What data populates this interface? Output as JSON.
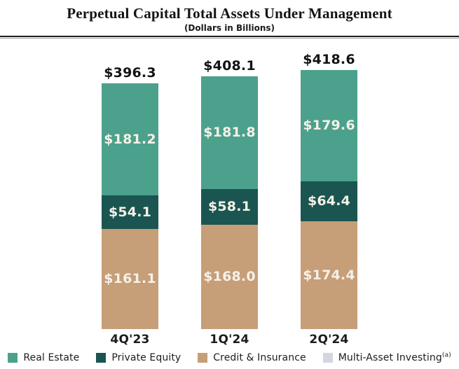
{
  "chart_data": {
    "type": "bar",
    "stacked": true,
    "title": "Perpetual Capital Total Assets Under Management",
    "subtitle": "(Dollars in Billions)",
    "unit": "USD billions",
    "grid": false,
    "legend_position": "bottom",
    "categories": [
      "4Q'23",
      "1Q'24",
      "2Q'24"
    ],
    "stack_order_top_to_bottom": [
      "Real Estate",
      "Private Equity",
      "Credit & Insurance"
    ],
    "series": [
      {
        "name": "Real Estate",
        "color": "#4CA18C",
        "values": [
          181.2,
          181.8,
          179.6
        ],
        "labels": [
          "$181.2",
          "$181.8",
          "$179.6"
        ]
      },
      {
        "name": "Private Equity",
        "color": "#1A5551",
        "values": [
          54.1,
          58.1,
          64.4
        ],
        "labels": [
          "$54.1",
          "$58.1",
          "$64.4"
        ]
      },
      {
        "name": "Credit & Insurance",
        "color": "#C69E78",
        "values": [
          161.1,
          168.0,
          174.4
        ],
        "labels": [
          "$161.1",
          "$168.0",
          "$174.4"
        ]
      },
      {
        "name": "Multi-Asset Investing",
        "footnote": "(a)",
        "color": "#D2D6DE",
        "values": [
          null,
          null,
          null
        ],
        "labels": [
          null,
          null,
          null
        ]
      }
    ],
    "totals": [
      396.3,
      408.1,
      418.6
    ],
    "total_labels": [
      "$396.3",
      "$408.1",
      "$418.6"
    ],
    "colors": {
      "segment_value_text": "#F6F1E7",
      "total_text": "#131313"
    }
  }
}
